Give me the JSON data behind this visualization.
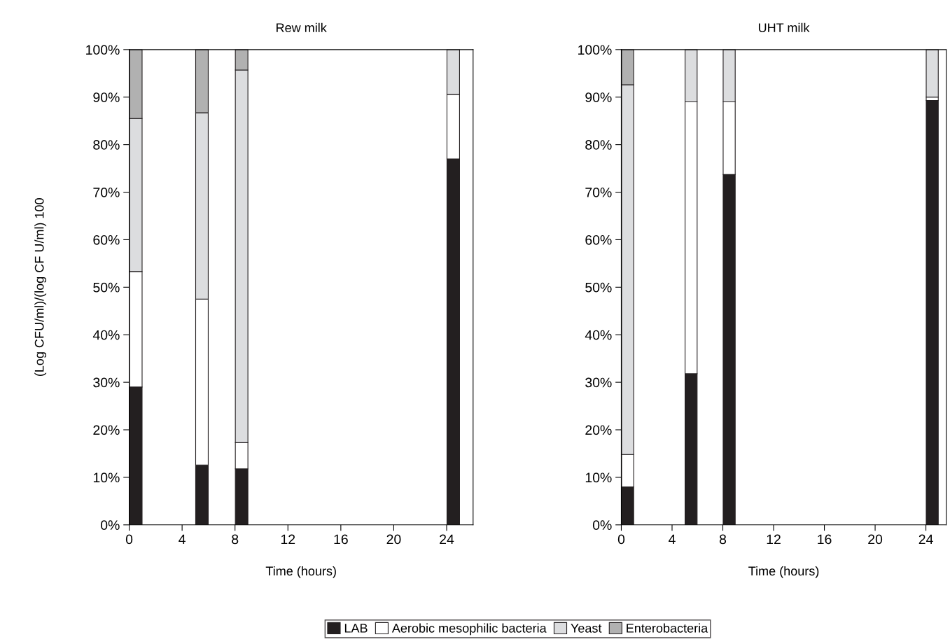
{
  "chart_data": [
    {
      "type": "bar",
      "stacked": true,
      "title": "Rew milk",
      "xlabel": "Time (hours)",
      "ylabel": "(Log CFU/ml)/(log CF U/ml) 100",
      "x": [
        0.5,
        5.5,
        8.5,
        24.5
      ],
      "series": [
        {
          "name": "LAB",
          "color": "#231f20",
          "values": [
            29,
            12.6,
            11.8,
            77
          ]
        },
        {
          "name": "Aerobic mesophilic bacteria",
          "color": "#ffffff",
          "values": [
            24.3,
            34.9,
            5.5,
            13.6
          ]
        },
        {
          "name": "Yeast",
          "color": "#dcdddf",
          "values": [
            32.2,
            39.2,
            78.4,
            9.4
          ]
        },
        {
          "name": "Enterobacteria",
          "color": "#b1b1b1",
          "values": [
            14.5,
            13.3,
            4.3,
            0
          ]
        }
      ],
      "xlim": [
        0,
        26
      ],
      "xticks": [
        0,
        4,
        8,
        12,
        16,
        20,
        24
      ],
      "ylim": [
        0,
        100
      ],
      "yticks": [
        {
          "value": 0,
          "label": "0%"
        },
        {
          "value": 10,
          "label": "10%"
        },
        {
          "value": 20,
          "label": "20%"
        },
        {
          "value": 30,
          "label": "30%"
        },
        {
          "value": 40,
          "label": "40%"
        },
        {
          "value": 50,
          "label": "50%"
        },
        {
          "value": 60,
          "label": "60%"
        },
        {
          "value": 70,
          "label": "70%"
        },
        {
          "value": 80,
          "label": "80%"
        },
        {
          "value": 90,
          "label": "90%"
        },
        {
          "value": 100,
          "label": "100%"
        }
      ],
      "legend": "bottom"
    },
    {
      "type": "bar",
      "stacked": true,
      "title": "UHT milk",
      "xlabel": "Time (hours)",
      "x": [
        0.5,
        5.5,
        8.5,
        24.5
      ],
      "series": [
        {
          "color": "#231f20",
          "values": [
            8,
            31.8,
            73.7,
            89.3
          ]
        },
        {
          "color": "#ffffff",
          "values": [
            6.8,
            57.2,
            15.3,
            0.7
          ]
        },
        {
          "color": "#dcdddf",
          "values": [
            77.8,
            11,
            11,
            10
          ]
        },
        {
          "color": "#b1b1b1",
          "values": [
            7.4,
            0,
            0,
            0
          ]
        }
      ],
      "xlim": [
        0,
        25.6
      ],
      "xticks": [
        0,
        4,
        8,
        12,
        16,
        20,
        24
      ],
      "ylim": [
        0,
        100
      ],
      "yticks": [
        {
          "value": 0,
          "label": "0%"
        },
        {
          "value": 10,
          "label": "10%"
        },
        {
          "value": 20,
          "label": "20%"
        },
        {
          "value": 30,
          "label": "30%"
        },
        {
          "value": 40,
          "label": "40%"
        },
        {
          "value": 50,
          "label": "50%"
        },
        {
          "value": 60,
          "label": "60%"
        },
        {
          "value": 70,
          "label": "70%"
        },
        {
          "value": 80,
          "label": "80%"
        },
        {
          "value": 90,
          "label": "90%"
        },
        {
          "value": 100,
          "label": "100%"
        }
      ]
    }
  ]
}
